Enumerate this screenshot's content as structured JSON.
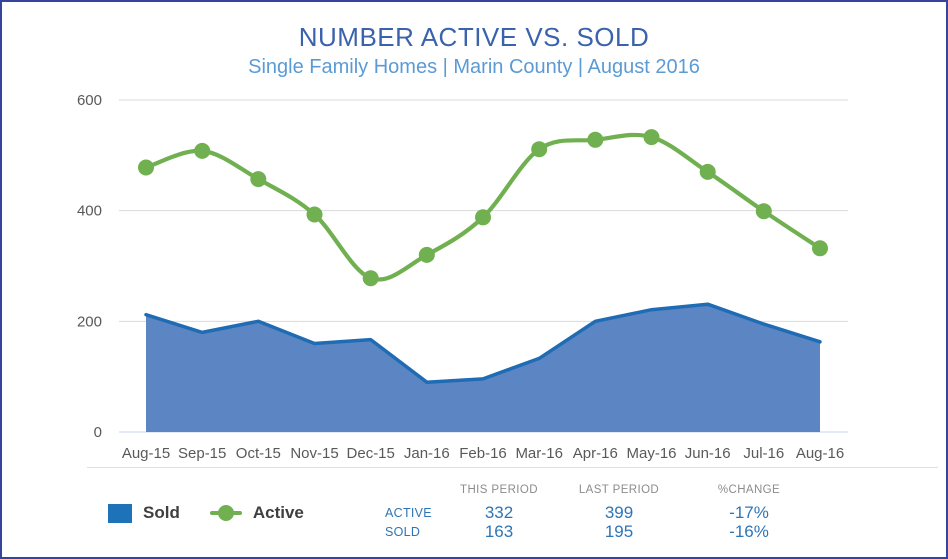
{
  "title": "NUMBER ACTIVE VS. SOLD",
  "subtitle": "Single Family Homes | Marin County | August 2016",
  "legend": {
    "sold_label": "Sold",
    "active_label": "Active",
    "sold_swatch_icon": "blue-square-swatch",
    "active_swatch_icon": "green-line-marker-swatch"
  },
  "table": {
    "headers": [
      "THIS PERIOD",
      "LAST PERIOD",
      "%CHANGE"
    ],
    "rows": [
      {
        "label": "ACTIVE",
        "this_period": "332",
        "last_period": "399",
        "pct_change": "-17%"
      },
      {
        "label": "SOLD",
        "this_period": "163",
        "last_period": "195",
        "pct_change": "-16%"
      }
    ]
  },
  "colors": {
    "title": "#3b62ad",
    "subtitle": "#5b9bd5",
    "axis_text": "#595959",
    "grid": "#d9d9d9",
    "zero_line": "#c3d6ee",
    "area_fill": "#5c85c3",
    "area_edge": "#1f6cb4",
    "line_green": "#70b050",
    "legend_sold_swatch": "#1e73b8",
    "legend_text": "#3f3f3f",
    "table_header_text": "#8c8c8c",
    "table_value_text": "#2e75b6",
    "divider": "#d8dfee",
    "frame_border": "#35459c"
  },
  "chart_data": {
    "type": "line",
    "title": "NUMBER ACTIVE VS. SOLD",
    "subtitle": "Single Family Homes | Marin County | August 2016",
    "categories": [
      "Aug-15",
      "Sep-15",
      "Oct-15",
      "Nov-15",
      "Dec-15",
      "Jan-16",
      "Feb-16",
      "Mar-16",
      "Apr-16",
      "May-16",
      "Jun-16",
      "Jul-16",
      "Aug-16"
    ],
    "series": [
      {
        "name": "Sold",
        "type": "area",
        "color": "#5c85c3",
        "edge_color": "#1f6cb4",
        "values": [
          212,
          180,
          200,
          160,
          167,
          90,
          96,
          133,
          200,
          221,
          231,
          195,
          163
        ]
      },
      {
        "name": "Active",
        "type": "line",
        "smooth": true,
        "color": "#70b050",
        "marker": "circle",
        "values": [
          478,
          508,
          457,
          393,
          278,
          320,
          388,
          511,
          528,
          533,
          470,
          399,
          332
        ]
      }
    ],
    "xlabel": "",
    "ylabel": "",
    "ylim": [
      0,
      600
    ],
    "yticks": [
      0,
      200,
      400,
      600
    ],
    "grid": true,
    "legend_position": "bottom-left"
  }
}
